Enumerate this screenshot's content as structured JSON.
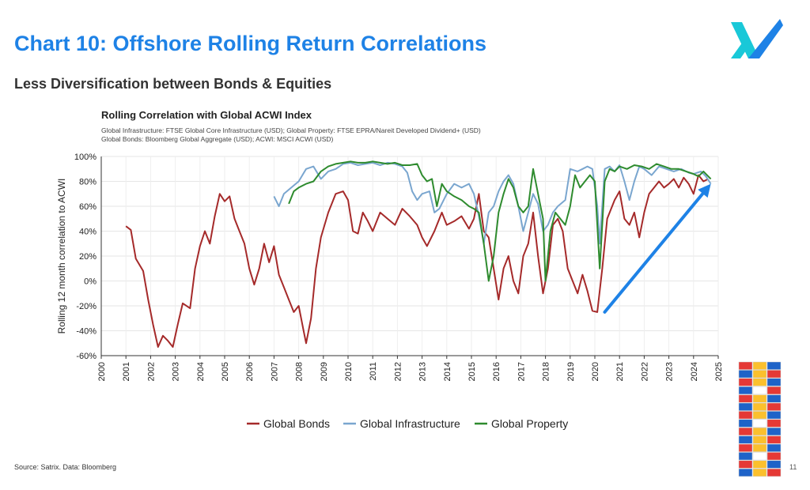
{
  "page": {
    "title": "Chart 10: Offshore Rolling Return Correlations",
    "subtitle": "Less Diversification between Bonds & Equities",
    "source": "Source: Satrix. Data: Bloomberg",
    "page_number": "11"
  },
  "colors": {
    "title": "#1e82e6",
    "bonds": "#a52a2a",
    "infrastructure": "#7aa6cf",
    "property": "#2e8b2e",
    "arrow": "#1e82e6"
  },
  "icons": [
    "satrix-logo-icon",
    "building-blocks-icon",
    "trend-arrow-icon"
  ],
  "chart_data": {
    "type": "line",
    "title": "Rolling Correlation with Global ACWI Index",
    "notes": [
      "Global Infrastructure: FTSE Global Core Infrastructure (USD); Global Property: FTSE EPRA/Nareit Developed Dividend+ (USD)",
      "Global Bonds: Bloomberg Global Aggregate (USD); ACWI: MSCI ACWI (USD)"
    ],
    "xlabel": "",
    "ylabel": "Rolling 12 month correlation to ACWI",
    "xlim": [
      2000,
      2025
    ],
    "ylim": [
      -60,
      100
    ],
    "x_ticks": [
      "2000",
      "2001",
      "2002",
      "2003",
      "2004",
      "2005",
      "2006",
      "2007",
      "2008",
      "2009",
      "2010",
      "2011",
      "2012",
      "2013",
      "2014",
      "2015",
      "2016",
      "2017",
      "2018",
      "2019",
      "2020",
      "2021",
      "2022",
      "2023",
      "2024",
      "2025"
    ],
    "y_ticks": [
      {
        "value": 100,
        "label": "100%"
      },
      {
        "value": 80,
        "label": "80%"
      },
      {
        "value": 60,
        "label": "60%"
      },
      {
        "value": 40,
        "label": "40%"
      },
      {
        "value": 20,
        "label": "20%"
      },
      {
        "value": 0,
        "label": "0%"
      },
      {
        "value": -20,
        "label": "-20%"
      },
      {
        "value": -40,
        "label": "-40%"
      },
      {
        "value": -60,
        "label": "-60%"
      }
    ],
    "grid": true,
    "legend_position": "bottom",
    "annotations": [
      "upward arrow from 2020.4 (-25%) to 2024.7 (78%)"
    ],
    "series": [
      {
        "name": "Global Bonds",
        "color": "#a52a2a",
        "points": [
          [
            2001.0,
            44
          ],
          [
            2001.2,
            41
          ],
          [
            2001.4,
            18
          ],
          [
            2001.7,
            8
          ],
          [
            2001.9,
            -15
          ],
          [
            2002.1,
            -35
          ],
          [
            2002.3,
            -53
          ],
          [
            2002.5,
            -44
          ],
          [
            2002.7,
            -48
          ],
          [
            2002.9,
            -53
          ],
          [
            2003.1,
            -35
          ],
          [
            2003.3,
            -18
          ],
          [
            2003.6,
            -22
          ],
          [
            2003.8,
            10
          ],
          [
            2004.0,
            28
          ],
          [
            2004.2,
            40
          ],
          [
            2004.4,
            30
          ],
          [
            2004.6,
            52
          ],
          [
            2004.8,
            70
          ],
          [
            2005.0,
            64
          ],
          [
            2005.2,
            68
          ],
          [
            2005.4,
            50
          ],
          [
            2005.6,
            40
          ],
          [
            2005.8,
            30
          ],
          [
            2006.0,
            10
          ],
          [
            2006.2,
            -3
          ],
          [
            2006.4,
            10
          ],
          [
            2006.6,
            30
          ],
          [
            2006.8,
            15
          ],
          [
            2007.0,
            28
          ],
          [
            2007.2,
            5
          ],
          [
            2007.4,
            -5
          ],
          [
            2007.6,
            -15
          ],
          [
            2007.8,
            -25
          ],
          [
            2008.0,
            -20
          ],
          [
            2008.2,
            -40
          ],
          [
            2008.3,
            -50
          ],
          [
            2008.5,
            -30
          ],
          [
            2008.7,
            10
          ],
          [
            2008.9,
            35
          ],
          [
            2009.2,
            55
          ],
          [
            2009.5,
            70
          ],
          [
            2009.8,
            72
          ],
          [
            2010.0,
            65
          ],
          [
            2010.2,
            40
          ],
          [
            2010.4,
            38
          ],
          [
            2010.6,
            55
          ],
          [
            2010.8,
            48
          ],
          [
            2011.0,
            40
          ],
          [
            2011.3,
            55
          ],
          [
            2011.6,
            50
          ],
          [
            2011.9,
            45
          ],
          [
            2012.2,
            58
          ],
          [
            2012.5,
            52
          ],
          [
            2012.8,
            45
          ],
          [
            2013.0,
            35
          ],
          [
            2013.2,
            28
          ],
          [
            2013.5,
            40
          ],
          [
            2013.8,
            55
          ],
          [
            2014.0,
            45
          ],
          [
            2014.3,
            48
          ],
          [
            2014.6,
            52
          ],
          [
            2014.9,
            42
          ],
          [
            2015.1,
            50
          ],
          [
            2015.3,
            70
          ],
          [
            2015.5,
            40
          ],
          [
            2015.7,
            35
          ],
          [
            2015.9,
            10
          ],
          [
            2016.1,
            -15
          ],
          [
            2016.3,
            10
          ],
          [
            2016.5,
            20
          ],
          [
            2016.7,
            0
          ],
          [
            2016.9,
            -10
          ],
          [
            2017.1,
            20
          ],
          [
            2017.3,
            30
          ],
          [
            2017.5,
            55
          ],
          [
            2017.7,
            20
          ],
          [
            2017.9,
            -10
          ],
          [
            2018.1,
            10
          ],
          [
            2018.3,
            45
          ],
          [
            2018.5,
            50
          ],
          [
            2018.7,
            40
          ],
          [
            2018.9,
            10
          ],
          [
            2019.1,
            0
          ],
          [
            2019.3,
            -10
          ],
          [
            2019.5,
            5
          ],
          [
            2019.7,
            -8
          ],
          [
            2019.9,
            -24
          ],
          [
            2020.1,
            -25
          ],
          [
            2020.3,
            10
          ],
          [
            2020.5,
            50
          ],
          [
            2020.8,
            65
          ],
          [
            2021.0,
            72
          ],
          [
            2021.2,
            50
          ],
          [
            2021.4,
            45
          ],
          [
            2021.6,
            55
          ],
          [
            2021.8,
            35
          ],
          [
            2022.0,
            55
          ],
          [
            2022.2,
            70
          ],
          [
            2022.4,
            75
          ],
          [
            2022.6,
            80
          ],
          [
            2022.8,
            75
          ],
          [
            2023.0,
            78
          ],
          [
            2023.2,
            82
          ],
          [
            2023.4,
            75
          ],
          [
            2023.6,
            83
          ],
          [
            2023.8,
            78
          ],
          [
            2024.0,
            70
          ],
          [
            2024.2,
            85
          ],
          [
            2024.4,
            80
          ],
          [
            2024.6,
            82
          ]
        ]
      },
      {
        "name": "Global Infrastructure",
        "color": "#7aa6cf",
        "points": [
          [
            2007.0,
            68
          ],
          [
            2007.2,
            60
          ],
          [
            2007.4,
            70
          ],
          [
            2007.7,
            75
          ],
          [
            2008.0,
            80
          ],
          [
            2008.3,
            90
          ],
          [
            2008.6,
            92
          ],
          [
            2008.9,
            82
          ],
          [
            2009.2,
            88
          ],
          [
            2009.5,
            90
          ],
          [
            2009.8,
            94
          ],
          [
            2010.1,
            95
          ],
          [
            2010.4,
            93
          ],
          [
            2010.7,
            94
          ],
          [
            2011.0,
            95
          ],
          [
            2011.3,
            93
          ],
          [
            2011.6,
            95
          ],
          [
            2011.9,
            94
          ],
          [
            2012.2,
            92
          ],
          [
            2012.4,
            87
          ],
          [
            2012.6,
            72
          ],
          [
            2012.8,
            65
          ],
          [
            2013.0,
            70
          ],
          [
            2013.3,
            72
          ],
          [
            2013.5,
            55
          ],
          [
            2013.7,
            58
          ],
          [
            2014.0,
            70
          ],
          [
            2014.3,
            78
          ],
          [
            2014.6,
            75
          ],
          [
            2014.9,
            78
          ],
          [
            2015.1,
            70
          ],
          [
            2015.3,
            52
          ],
          [
            2015.5,
            30
          ],
          [
            2015.7,
            55
          ],
          [
            2015.9,
            60
          ],
          [
            2016.1,
            72
          ],
          [
            2016.3,
            80
          ],
          [
            2016.5,
            85
          ],
          [
            2016.7,
            78
          ],
          [
            2016.9,
            60
          ],
          [
            2017.1,
            40
          ],
          [
            2017.3,
            55
          ],
          [
            2017.5,
            70
          ],
          [
            2017.7,
            62
          ],
          [
            2017.9,
            40
          ],
          [
            2018.1,
            45
          ],
          [
            2018.3,
            55
          ],
          [
            2018.5,
            60
          ],
          [
            2018.8,
            65
          ],
          [
            2019.0,
            90
          ],
          [
            2019.3,
            88
          ],
          [
            2019.5,
            90
          ],
          [
            2019.7,
            92
          ],
          [
            2019.9,
            90
          ],
          [
            2020.1,
            60
          ],
          [
            2020.2,
            30
          ],
          [
            2020.4,
            90
          ],
          [
            2020.6,
            92
          ],
          [
            2020.8,
            88
          ],
          [
            2021.0,
            93
          ],
          [
            2021.2,
            80
          ],
          [
            2021.4,
            65
          ],
          [
            2021.6,
            80
          ],
          [
            2021.8,
            92
          ],
          [
            2022.0,
            90
          ],
          [
            2022.3,
            85
          ],
          [
            2022.6,
            92
          ],
          [
            2022.9,
            90
          ],
          [
            2023.2,
            88
          ],
          [
            2023.5,
            90
          ],
          [
            2023.8,
            87
          ],
          [
            2024.0,
            86
          ],
          [
            2024.3,
            88
          ],
          [
            2024.5,
            84
          ],
          [
            2024.7,
            78
          ]
        ]
      },
      {
        "name": "Global Property",
        "color": "#2e8b2e",
        "points": [
          [
            2007.6,
            62
          ],
          [
            2007.8,
            72
          ],
          [
            2008.0,
            75
          ],
          [
            2008.3,
            78
          ],
          [
            2008.6,
            80
          ],
          [
            2008.9,
            88
          ],
          [
            2009.2,
            92
          ],
          [
            2009.5,
            94
          ],
          [
            2009.8,
            95
          ],
          [
            2010.1,
            96
          ],
          [
            2010.4,
            95
          ],
          [
            2010.7,
            95
          ],
          [
            2011.0,
            96
          ],
          [
            2011.3,
            95
          ],
          [
            2011.6,
            94
          ],
          [
            2011.9,
            95
          ],
          [
            2012.2,
            93
          ],
          [
            2012.5,
            93
          ],
          [
            2012.8,
            94
          ],
          [
            2013.0,
            85
          ],
          [
            2013.2,
            80
          ],
          [
            2013.4,
            82
          ],
          [
            2013.6,
            60
          ],
          [
            2013.8,
            78
          ],
          [
            2014.0,
            72
          ],
          [
            2014.3,
            68
          ],
          [
            2014.6,
            65
          ],
          [
            2014.9,
            60
          ],
          [
            2015.1,
            58
          ],
          [
            2015.3,
            55
          ],
          [
            2015.5,
            30
          ],
          [
            2015.7,
            0
          ],
          [
            2015.9,
            20
          ],
          [
            2016.1,
            55
          ],
          [
            2016.3,
            70
          ],
          [
            2016.5,
            82
          ],
          [
            2016.7,
            75
          ],
          [
            2016.9,
            60
          ],
          [
            2017.1,
            55
          ],
          [
            2017.3,
            60
          ],
          [
            2017.5,
            90
          ],
          [
            2017.7,
            70
          ],
          [
            2017.9,
            50
          ],
          [
            2018.0,
            0
          ],
          [
            2018.2,
            40
          ],
          [
            2018.4,
            55
          ],
          [
            2018.6,
            50
          ],
          [
            2018.8,
            45
          ],
          [
            2019.0,
            60
          ],
          [
            2019.2,
            85
          ],
          [
            2019.4,
            75
          ],
          [
            2019.6,
            80
          ],
          [
            2019.8,
            85
          ],
          [
            2020.0,
            80
          ],
          [
            2020.2,
            10
          ],
          [
            2020.4,
            80
          ],
          [
            2020.6,
            90
          ],
          [
            2020.8,
            88
          ],
          [
            2021.0,
            92
          ],
          [
            2021.3,
            90
          ],
          [
            2021.6,
            93
          ],
          [
            2021.9,
            92
          ],
          [
            2022.2,
            90
          ],
          [
            2022.5,
            94
          ],
          [
            2022.8,
            92
          ],
          [
            2023.1,
            90
          ],
          [
            2023.4,
            90
          ],
          [
            2023.7,
            88
          ],
          [
            2024.0,
            86
          ],
          [
            2024.2,
            84
          ],
          [
            2024.4,
            88
          ],
          [
            2024.7,
            82
          ]
        ]
      }
    ]
  }
}
